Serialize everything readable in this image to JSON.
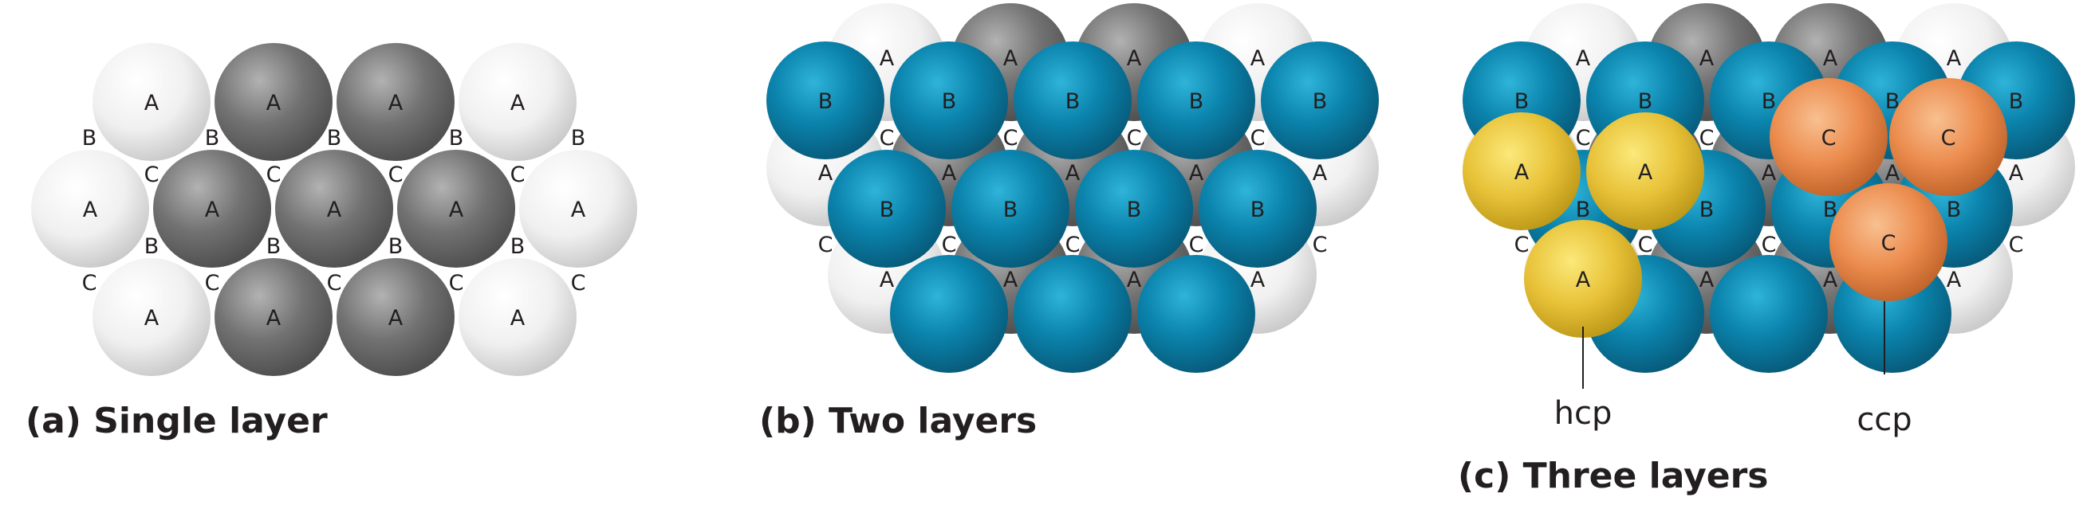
{
  "panels": [
    {
      "id": "a",
      "title": "(a) Single layer"
    },
    {
      "id": "b",
      "title": "(b) Two layers"
    },
    {
      "id": "c",
      "title": "(c) Three layers",
      "callouts": {
        "hcp": "hcp",
        "ccp": "ccp"
      }
    }
  ],
  "site_labels": {
    "A": "A",
    "B": "B",
    "C": "C"
  },
  "colors": {
    "layer_A_light": "#eeeeee",
    "layer_A_dark": "#6f6f6f",
    "layer_B": "#0a7fa6",
    "layer_C_hcp": "#e8c238",
    "layer_C_ccp": "#ea8a4c",
    "text": "#231f20"
  }
}
